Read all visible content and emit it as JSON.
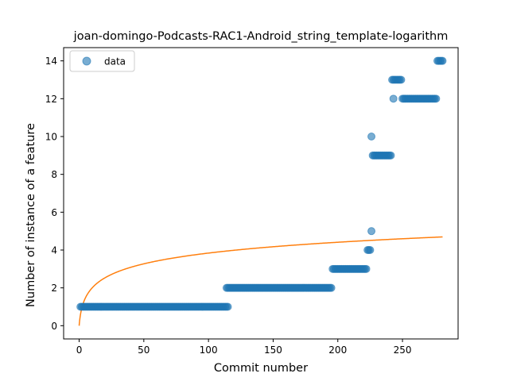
{
  "chart_data": {
    "type": "scatter",
    "title": "joan-domingo-Podcasts-RAC1-Android_string_template-logarithm",
    "xlabel": "Commit number",
    "ylabel": "Number of instance of a feature",
    "xlim": [
      -12,
      293
    ],
    "ylim": [
      -0.7,
      14.7
    ],
    "xticks": [
      0,
      50,
      100,
      150,
      200,
      250
    ],
    "yticks": [
      0,
      2,
      4,
      6,
      8,
      10,
      12,
      14
    ],
    "grid": false,
    "legend": {
      "position": "top-left",
      "entries": [
        "data"
      ]
    },
    "scatter_series": {
      "name": "data",
      "color": "#1f77b4",
      "runs": [
        {
          "x_start": 1,
          "x_end": 115,
          "y": 1
        },
        {
          "x_start": 114,
          "x_end": 195,
          "y": 2
        },
        {
          "x_start": 196,
          "x_end": 222,
          "y": 3
        },
        {
          "x_start": 223,
          "x_end": 225,
          "y": 4
        },
        {
          "x_start": 226,
          "x_end": 226,
          "y": 5
        },
        {
          "x_start": 226,
          "x_end": 226,
          "y": 10
        },
        {
          "x_start": 227,
          "x_end": 241,
          "y": 9
        },
        {
          "x_start": 242,
          "x_end": 249,
          "y": 13
        },
        {
          "x_start": 243,
          "x_end": 243,
          "y": 12
        },
        {
          "x_start": 250,
          "x_end": 276,
          "y": 12
        },
        {
          "x_start": 277,
          "x_end": 281,
          "y": 14
        }
      ]
    },
    "fit_series": {
      "color": "#ff7f0e",
      "formula": "y = a*ln(1+x)",
      "a": 0.8318,
      "x_range": [
        0,
        281
      ]
    }
  }
}
